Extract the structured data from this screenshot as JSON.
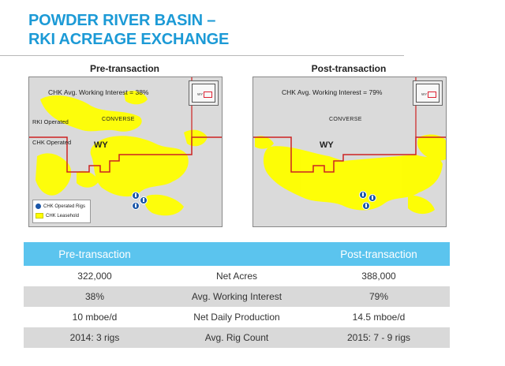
{
  "header": {
    "title_line1": "POWDER RIVER BASIN –",
    "title_line2": "RKI ACREAGE EXCHANGE"
  },
  "maps": {
    "pre": {
      "label": "Pre-transaction",
      "working_interest": "CHK Avg. Working Interest = 38%",
      "county": "CONVERSE",
      "state": "WY",
      "rki_operated": "RKI Operated",
      "chk_operated": "CHK Operated",
      "legend_rigs": "CHK Operated Rigs",
      "legend_leasehold": "CHK Leasehold",
      "inset_state": "WY"
    },
    "post": {
      "label": "Post-transaction",
      "working_interest": "CHK Avg. Working Interest = 79%",
      "county": "CONVERSE",
      "state": "WY",
      "inset_state": "WY"
    }
  },
  "colors": {
    "title": "#1c9ad6",
    "leasehold": "#ffff00",
    "boundary": "#cc2222",
    "table_header": "#5bc4ee",
    "row_shade": "#d9d9d9",
    "rig": "#1a56a8"
  },
  "icons": [
    "rig-marker-icon",
    "leasehold-swatch-icon"
  ],
  "table": {
    "headers": [
      "Pre-transaction",
      "",
      "Post-transaction"
    ],
    "rows": [
      {
        "pre": "322,000",
        "metric": "Net Acres",
        "post": "388,000"
      },
      {
        "pre": "38%",
        "metric": "Avg. Working Interest",
        "post": "79%"
      },
      {
        "pre": "10 mboe/d",
        "metric": "Net Daily Production",
        "post": "14.5 mboe/d"
      },
      {
        "pre": "2014:  3 rigs",
        "metric": "Avg. Rig Count",
        "post": "2015:  7 - 9 rigs"
      }
    ]
  }
}
